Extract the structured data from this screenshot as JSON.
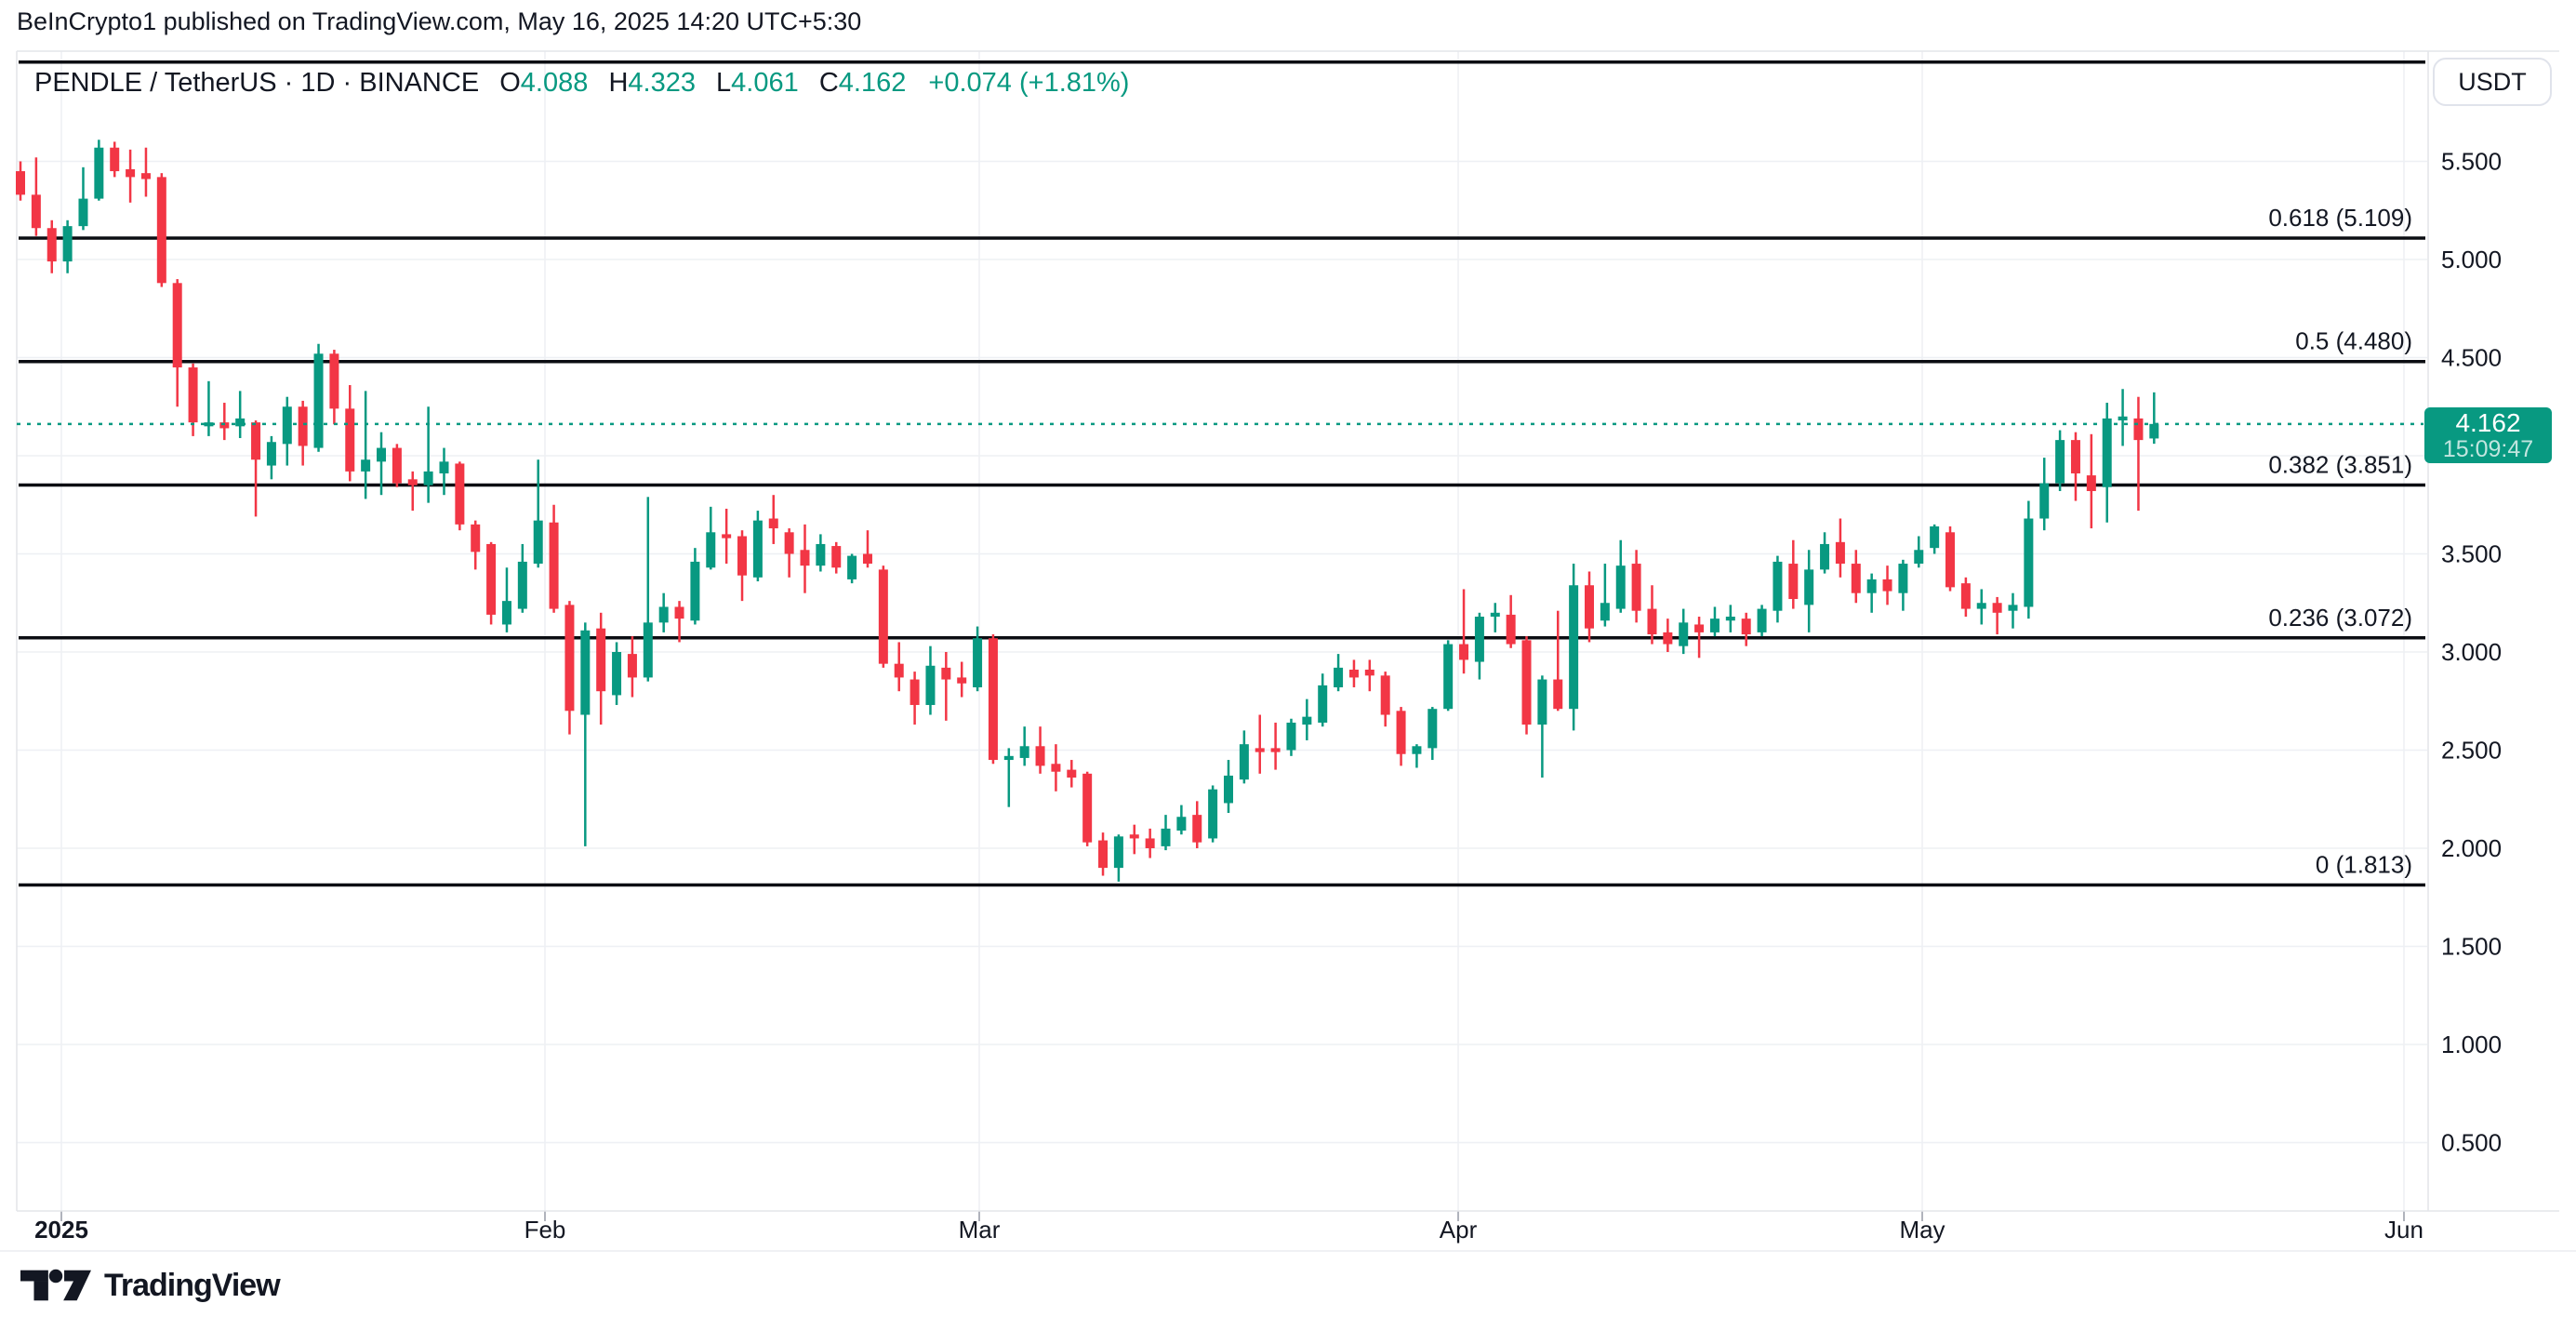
{
  "attribution": "BeInCrypto1 published on TradingView.com, May 16, 2025 14:20 UTC+5:30",
  "header": {
    "symbol": "PENDLE / TetherUS",
    "separator": "·",
    "interval": "1D",
    "exchange": "BINANCE",
    "ohlc": [
      {
        "label": "O",
        "value": "4.088"
      },
      {
        "label": "H",
        "value": "4.323"
      },
      {
        "label": "L",
        "value": "4.061"
      },
      {
        "label": "C",
        "value": "4.162"
      }
    ],
    "change": "+0.074 (+1.81%)"
  },
  "price_axis": {
    "currency": "USDT",
    "ticks": [
      "5.500",
      "5.000",
      "4.500",
      "3.500",
      "3.000",
      "2.500",
      "2.000",
      "1.500",
      "1.000",
      "0.500"
    ]
  },
  "time_axis": {
    "labels": [
      "2025",
      "Feb",
      "Mar",
      "Apr",
      "May",
      "Jun"
    ]
  },
  "last_price_badge": {
    "value": "4.162",
    "countdown": "15:09:47"
  },
  "footer": {
    "brand": "TradingView"
  },
  "colors": {
    "up": "#089981",
    "down": "#F23645",
    "text": "#131722",
    "fib": "#0b0d12",
    "grid": "#eef0f4"
  },
  "chart_data": {
    "type": "candlestick",
    "title": "PENDLE / TetherUS · 1D · BINANCE",
    "ylabel": "USDT",
    "visible_price_range": [
      0.3,
      6.1
    ],
    "last_price": 4.162,
    "fib_levels": [
      {
        "label": "",
        "value": 6.006
      },
      {
        "label": "0.618 (5.109)",
        "value": 5.109
      },
      {
        "label": "0.5 (4.480)",
        "value": 4.48
      },
      {
        "label": "0.382 (3.851)",
        "value": 3.851
      },
      {
        "label": "0.236 (3.072)",
        "value": 3.072
      },
      {
        "label": "0 (1.813)",
        "value": 1.813
      }
    ],
    "grid_prices": [
      5.5,
      5.0,
      4.5,
      4.0,
      3.5,
      3.0,
      2.5,
      2.0,
      1.5,
      1.0,
      0.5
    ],
    "candles_format": [
      "open",
      "high",
      "low",
      "close"
    ],
    "candles": [
      [
        5.45,
        5.5,
        5.3,
        5.33
      ],
      [
        5.33,
        5.52,
        5.12,
        5.16
      ],
      [
        5.16,
        5.2,
        4.93,
        4.99
      ],
      [
        4.99,
        5.2,
        4.93,
        5.17
      ],
      [
        5.17,
        5.47,
        5.15,
        5.31
      ],
      [
        5.31,
        5.61,
        5.3,
        5.57
      ],
      [
        5.57,
        5.6,
        5.42,
        5.45
      ],
      [
        5.46,
        5.56,
        5.29,
        5.42
      ],
      [
        5.44,
        5.57,
        5.32,
        5.41
      ],
      [
        5.42,
        5.44,
        4.86,
        4.88
      ],
      [
        4.88,
        4.9,
        4.25,
        4.45
      ],
      [
        4.45,
        4.47,
        4.1,
        4.17
      ],
      [
        4.15,
        4.38,
        4.1,
        4.17
      ],
      [
        4.17,
        4.27,
        4.08,
        4.14
      ],
      [
        4.15,
        4.33,
        4.09,
        4.19
      ],
      [
        4.17,
        4.18,
        3.69,
        3.98
      ],
      [
        3.95,
        4.1,
        3.88,
        4.07
      ],
      [
        4.06,
        4.3,
        3.95,
        4.25
      ],
      [
        4.25,
        4.28,
        3.95,
        4.05
      ],
      [
        4.04,
        4.57,
        4.02,
        4.52
      ],
      [
        4.52,
        4.54,
        4.16,
        4.24
      ],
      [
        4.24,
        4.36,
        3.87,
        3.92
      ],
      [
        3.92,
        4.33,
        3.78,
        3.98
      ],
      [
        3.97,
        4.12,
        3.8,
        4.04
      ],
      [
        4.04,
        4.06,
        3.84,
        3.86
      ],
      [
        3.88,
        3.92,
        3.72,
        3.85
      ],
      [
        3.85,
        4.25,
        3.76,
        3.92
      ],
      [
        3.91,
        4.04,
        3.8,
        3.97
      ],
      [
        3.96,
        3.97,
        3.62,
        3.65
      ],
      [
        3.65,
        3.67,
        3.42,
        3.51
      ],
      [
        3.55,
        3.56,
        3.14,
        3.19
      ],
      [
        3.14,
        3.43,
        3.1,
        3.26
      ],
      [
        3.22,
        3.55,
        3.2,
        3.46
      ],
      [
        3.45,
        3.98,
        3.43,
        3.67
      ],
      [
        3.66,
        3.75,
        3.2,
        3.22
      ],
      [
        3.24,
        3.26,
        2.58,
        2.7
      ],
      [
        2.68,
        3.15,
        2.01,
        3.11
      ],
      [
        3.12,
        3.2,
        2.63,
        2.8
      ],
      [
        2.78,
        3.05,
        2.73,
        3.0
      ],
      [
        2.99,
        3.08,
        2.77,
        2.87
      ],
      [
        2.87,
        3.79,
        2.85,
        3.15
      ],
      [
        3.15,
        3.3,
        3.1,
        3.23
      ],
      [
        3.23,
        3.26,
        3.05,
        3.17
      ],
      [
        3.16,
        3.53,
        3.14,
        3.46
      ],
      [
        3.43,
        3.74,
        3.42,
        3.61
      ],
      [
        3.6,
        3.73,
        3.45,
        3.58
      ],
      [
        3.59,
        3.62,
        3.26,
        3.39
      ],
      [
        3.38,
        3.72,
        3.36,
        3.67
      ],
      [
        3.68,
        3.8,
        3.55,
        3.63
      ],
      [
        3.61,
        3.63,
        3.38,
        3.5
      ],
      [
        3.52,
        3.65,
        3.3,
        3.44
      ],
      [
        3.44,
        3.6,
        3.41,
        3.55
      ],
      [
        3.54,
        3.56,
        3.4,
        3.43
      ],
      [
        3.37,
        3.5,
        3.35,
        3.49
      ],
      [
        3.5,
        3.62,
        3.43,
        3.45
      ],
      [
        3.42,
        3.44,
        2.92,
        2.94
      ],
      [
        2.94,
        3.05,
        2.8,
        2.87
      ],
      [
        2.86,
        2.9,
        2.63,
        2.73
      ],
      [
        2.73,
        3.03,
        2.68,
        2.93
      ],
      [
        2.92,
        3.0,
        2.65,
        2.86
      ],
      [
        2.87,
        2.95,
        2.77,
        2.84
      ],
      [
        2.82,
        3.13,
        2.8,
        3.07
      ],
      [
        3.07,
        3.09,
        2.43,
        2.45
      ],
      [
        2.45,
        2.51,
        2.21,
        2.47
      ],
      [
        2.46,
        2.62,
        2.42,
        2.52
      ],
      [
        2.52,
        2.62,
        2.38,
        2.42
      ],
      [
        2.43,
        2.53,
        2.29,
        2.39
      ],
      [
        2.4,
        2.45,
        2.31,
        2.36
      ],
      [
        2.38,
        2.39,
        2.01,
        2.03
      ],
      [
        2.04,
        2.08,
        1.86,
        1.9
      ],
      [
        1.9,
        2.07,
        1.83,
        2.06
      ],
      [
        2.07,
        2.12,
        1.97,
        2.05
      ],
      [
        2.05,
        2.1,
        1.95,
        2.0
      ],
      [
        2.01,
        2.17,
        1.99,
        2.1
      ],
      [
        2.09,
        2.22,
        2.07,
        2.16
      ],
      [
        2.17,
        2.24,
        2.0,
        2.03
      ],
      [
        2.05,
        2.32,
        2.03,
        2.3
      ],
      [
        2.23,
        2.45,
        2.18,
        2.37
      ],
      [
        2.35,
        2.6,
        2.33,
        2.53
      ],
      [
        2.51,
        2.68,
        2.38,
        2.49
      ],
      [
        2.51,
        2.64,
        2.4,
        2.49
      ],
      [
        2.5,
        2.66,
        2.47,
        2.64
      ],
      [
        2.63,
        2.76,
        2.55,
        2.67
      ],
      [
        2.64,
        2.89,
        2.62,
        2.83
      ],
      [
        2.82,
        2.99,
        2.8,
        2.92
      ],
      [
        2.91,
        2.96,
        2.82,
        2.87
      ],
      [
        2.91,
        2.96,
        2.8,
        2.88
      ],
      [
        2.88,
        2.9,
        2.62,
        2.68
      ],
      [
        2.7,
        2.72,
        2.42,
        2.48
      ],
      [
        2.48,
        2.53,
        2.41,
        2.52
      ],
      [
        2.51,
        2.72,
        2.45,
        2.71
      ],
      [
        2.71,
        3.06,
        2.7,
        3.04
      ],
      [
        3.04,
        3.32,
        2.89,
        2.96
      ],
      [
        2.95,
        3.2,
        2.86,
        3.18
      ],
      [
        3.18,
        3.25,
        3.1,
        3.2
      ],
      [
        3.19,
        3.29,
        3.02,
        3.04
      ],
      [
        3.06,
        3.08,
        2.58,
        2.63
      ],
      [
        2.63,
        2.88,
        2.36,
        2.86
      ],
      [
        2.86,
        3.21,
        2.7,
        2.71
      ],
      [
        2.71,
        3.45,
        2.6,
        3.34
      ],
      [
        3.34,
        3.41,
        3.05,
        3.12
      ],
      [
        3.16,
        3.45,
        3.13,
        3.25
      ],
      [
        3.22,
        3.57,
        3.2,
        3.44
      ],
      [
        3.45,
        3.52,
        3.15,
        3.21
      ],
      [
        3.22,
        3.34,
        3.04,
        3.09
      ],
      [
        3.1,
        3.17,
        3.0,
        3.04
      ],
      [
        3.03,
        3.22,
        2.99,
        3.15
      ],
      [
        3.14,
        3.18,
        2.97,
        3.1
      ],
      [
        3.1,
        3.23,
        3.08,
        3.17
      ],
      [
        3.16,
        3.24,
        3.1,
        3.18
      ],
      [
        3.17,
        3.2,
        3.03,
        3.09
      ],
      [
        3.1,
        3.24,
        3.08,
        3.22
      ],
      [
        3.21,
        3.49,
        3.15,
        3.46
      ],
      [
        3.45,
        3.57,
        3.22,
        3.27
      ],
      [
        3.24,
        3.52,
        3.1,
        3.42
      ],
      [
        3.42,
        3.61,
        3.4,
        3.55
      ],
      [
        3.56,
        3.68,
        3.38,
        3.45
      ],
      [
        3.45,
        3.52,
        3.25,
        3.3
      ],
      [
        3.3,
        3.4,
        3.2,
        3.37
      ],
      [
        3.37,
        3.44,
        3.24,
        3.31
      ],
      [
        3.3,
        3.47,
        3.21,
        3.45
      ],
      [
        3.45,
        3.59,
        3.43,
        3.52
      ],
      [
        3.53,
        3.65,
        3.5,
        3.64
      ],
      [
        3.61,
        3.64,
        3.31,
        3.33
      ],
      [
        3.35,
        3.38,
        3.18,
        3.22
      ],
      [
        3.22,
        3.32,
        3.14,
        3.25
      ],
      [
        3.25,
        3.28,
        3.09,
        3.2
      ],
      [
        3.21,
        3.3,
        3.12,
        3.24
      ],
      [
        3.23,
        3.77,
        3.17,
        3.68
      ],
      [
        3.68,
        3.99,
        3.62,
        3.86
      ],
      [
        3.86,
        4.13,
        3.82,
        4.08
      ],
      [
        4.08,
        4.12,
        3.77,
        3.91
      ],
      [
        3.9,
        4.11,
        3.63,
        3.82
      ],
      [
        3.84,
        4.27,
        3.66,
        4.19
      ],
      [
        4.18,
        4.34,
        4.05,
        4.2
      ],
      [
        4.19,
        4.3,
        3.72,
        4.08
      ],
      [
        4.088,
        4.323,
        4.061,
        4.162
      ]
    ]
  }
}
